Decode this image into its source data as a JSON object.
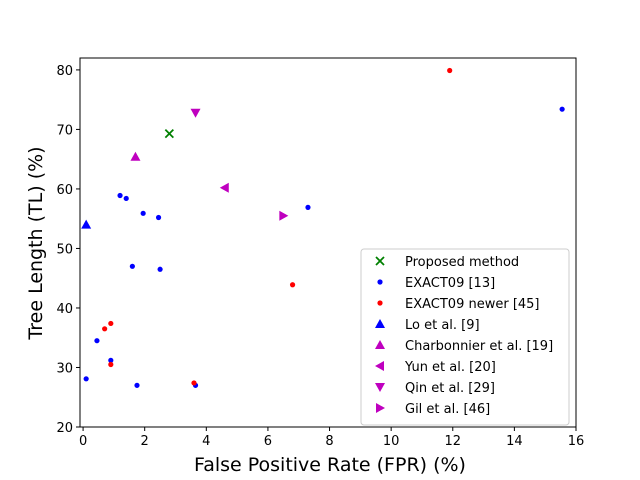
{
  "chart_data": {
    "type": "scatter",
    "title": "",
    "xlabel": "False Positive Rate (FPR) (%)",
    "ylabel": "Tree Length (TL) (%)",
    "xlim": [
      -0.1,
      16
    ],
    "ylim": [
      20,
      82
    ],
    "xticks": [
      0,
      2,
      4,
      6,
      8,
      10,
      12,
      14,
      16
    ],
    "yticks": [
      20,
      30,
      40,
      50,
      60,
      70,
      80
    ],
    "grid": false,
    "legend_position": "lower-right",
    "series": [
      {
        "name": "Proposed method",
        "marker": "x",
        "color": "#008000",
        "points": [
          [
            2.8,
            69.3
          ]
        ]
      },
      {
        "name": "EXACT09 [13]",
        "marker": "dot",
        "color": "#0000ff",
        "points": [
          [
            0.1,
            28.1
          ],
          [
            0.45,
            34.5
          ],
          [
            0.9,
            31.2
          ],
          [
            1.2,
            58.9
          ],
          [
            1.4,
            58.4
          ],
          [
            1.6,
            47.0
          ],
          [
            1.75,
            27.0
          ],
          [
            1.95,
            55.9
          ],
          [
            2.45,
            55.2
          ],
          [
            2.5,
            46.5
          ],
          [
            3.65,
            27.0
          ],
          [
            7.3,
            56.9
          ],
          [
            15.55,
            73.4
          ]
        ]
      },
      {
        "name": "EXACT09 newer [45]",
        "marker": "dot",
        "color": "#ff0000",
        "points": [
          [
            0.7,
            36.5
          ],
          [
            0.9,
            37.4
          ],
          [
            0.9,
            30.5
          ],
          [
            3.6,
            27.4
          ],
          [
            6.8,
            43.9
          ],
          [
            11.9,
            79.9
          ]
        ]
      },
      {
        "name": "Lo et al. [9]",
        "marker": "triangle-up",
        "color": "#0000ff",
        "points": [
          [
            0.1,
            54.0
          ]
        ]
      },
      {
        "name": "Charbonnier et al. [19]",
        "marker": "triangle-up",
        "color": "#bf00bf",
        "points": [
          [
            1.7,
            65.4
          ]
        ]
      },
      {
        "name": "Yun et al. [20]",
        "marker": "triangle-left",
        "color": "#bf00bf",
        "points": [
          [
            4.6,
            60.2
          ]
        ]
      },
      {
        "name": "Qin et al. [29]",
        "marker": "triangle-down",
        "color": "#bf00bf",
        "points": [
          [
            3.65,
            72.8
          ]
        ]
      },
      {
        "name": "Gil et al. [46]",
        "marker": "triangle-right",
        "color": "#bf00bf",
        "points": [
          [
            6.5,
            55.5
          ]
        ]
      }
    ]
  }
}
